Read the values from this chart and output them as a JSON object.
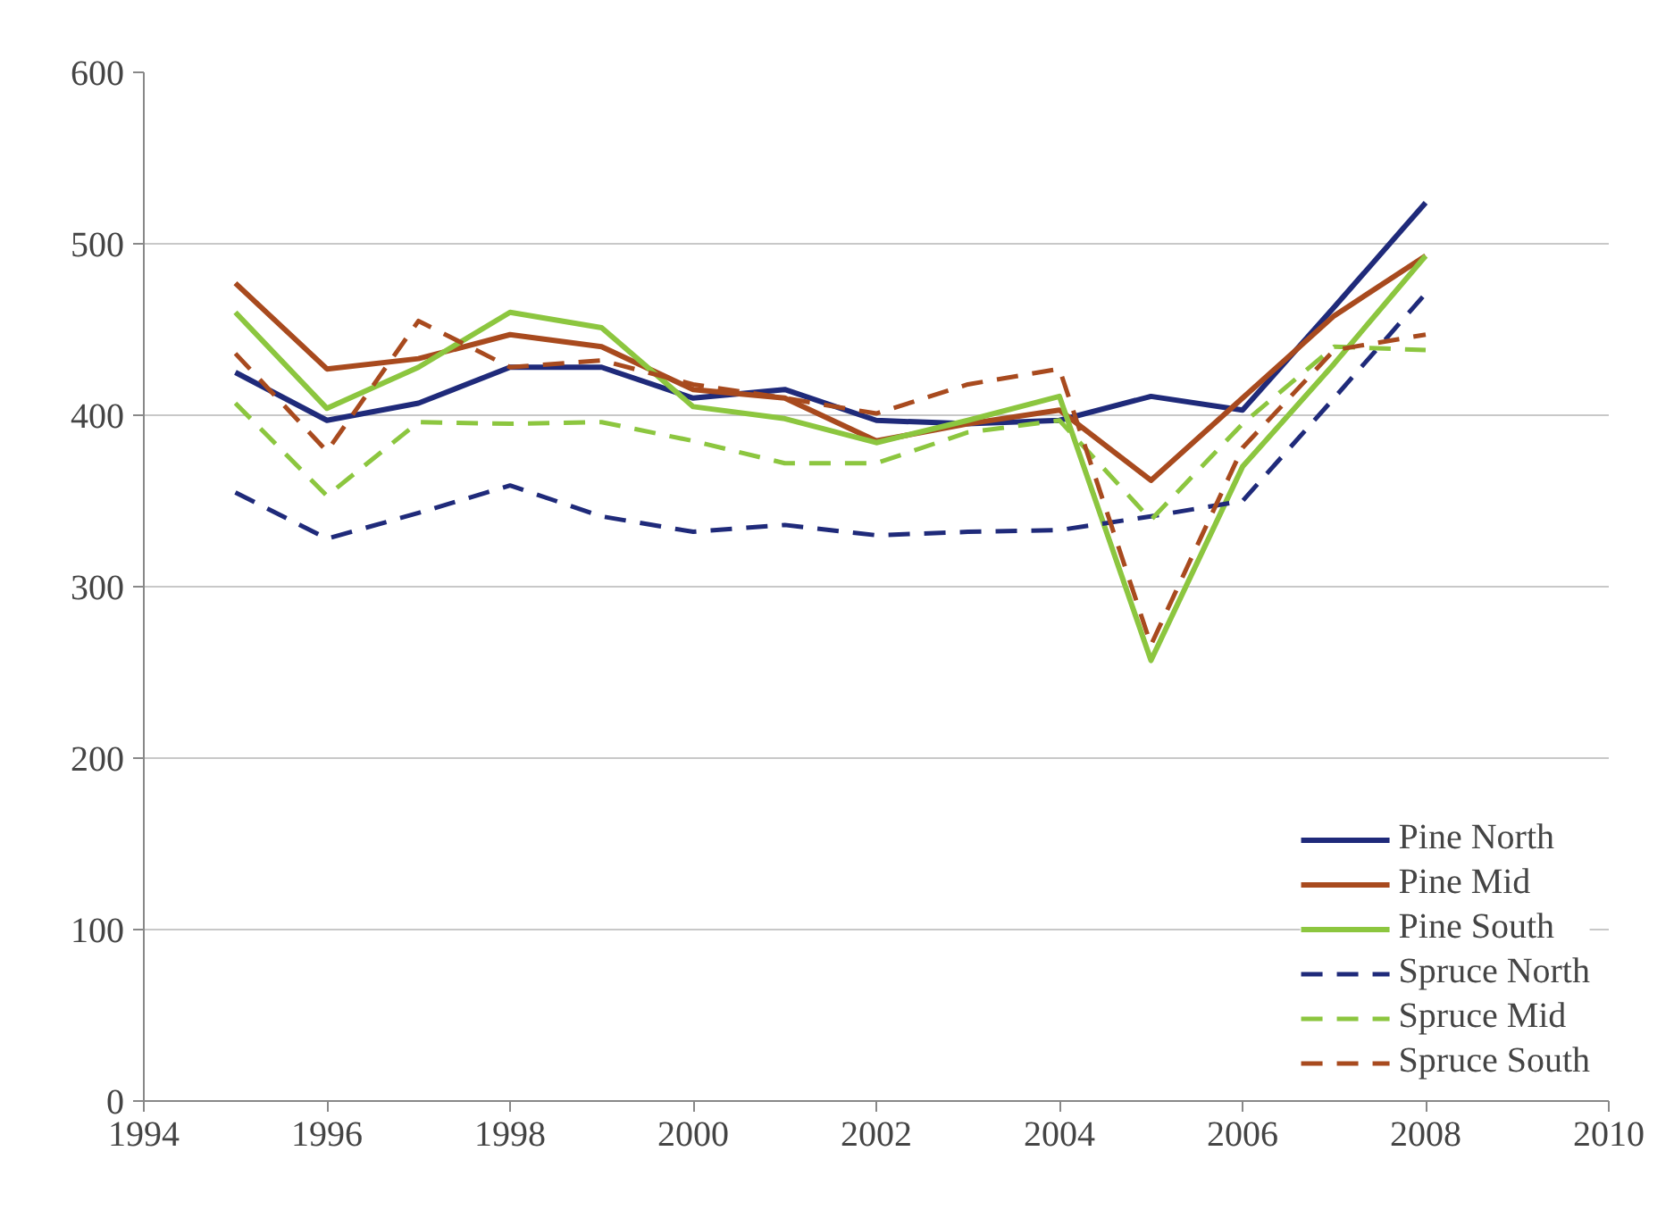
{
  "chart_data": {
    "type": "line",
    "x": [
      1995,
      1996,
      1997,
      1998,
      1999,
      2000,
      2001,
      2002,
      2003,
      2004,
      2005,
      2006,
      2007,
      2008
    ],
    "xlim": [
      1994,
      2010
    ],
    "xticks": [
      1994,
      1996,
      1998,
      2000,
      2002,
      2004,
      2006,
      2008,
      2010
    ],
    "ylim": [
      0,
      600
    ],
    "yticks": [
      0,
      100,
      200,
      300,
      400,
      500,
      600
    ],
    "grid": "y",
    "legend": "bottom right",
    "marker": "none",
    "series": [
      {
        "name": "Pine North",
        "color": "#1f2a7a",
        "line_style": "solid",
        "values": [
          425,
          397,
          407,
          428,
          428,
          410,
          415,
          397,
          395,
          397,
          411,
          403,
          463,
          524
        ]
      },
      {
        "name": "Pine Mid",
        "color": "#a84a1e",
        "line_style": "solid",
        "values": [
          477,
          427,
          433,
          447,
          440,
          415,
          410,
          385,
          395,
          403,
          362,
          410,
          458,
          493
        ]
      },
      {
        "name": "Pine South",
        "color": "#8cc63f",
        "line_style": "solid",
        "values": [
          460,
          404,
          428,
          460,
          451,
          405,
          398,
          384,
          397,
          411,
          257,
          370,
          430,
          493
        ]
      },
      {
        "name": "Spruce North",
        "color": "#1f2a7a",
        "line_style": "dashed",
        "values": [
          355,
          328,
          343,
          359,
          341,
          332,
          336,
          330,
          332,
          333,
          341,
          350,
          410,
          471
        ]
      },
      {
        "name": "Spruce Mid",
        "color": "#8cc63f",
        "line_style": "dashed",
        "values": [
          407,
          353,
          396,
          395,
          396,
          385,
          372,
          372,
          390,
          397,
          339,
          395,
          440,
          438
        ]
      },
      {
        "name": "Spruce South",
        "color": "#a84a1e",
        "line_style": "dashed",
        "values": [
          436,
          379,
          455,
          428,
          432,
          418,
          410,
          401,
          418,
          427,
          266,
          381,
          438,
          447
        ]
      }
    ]
  }
}
